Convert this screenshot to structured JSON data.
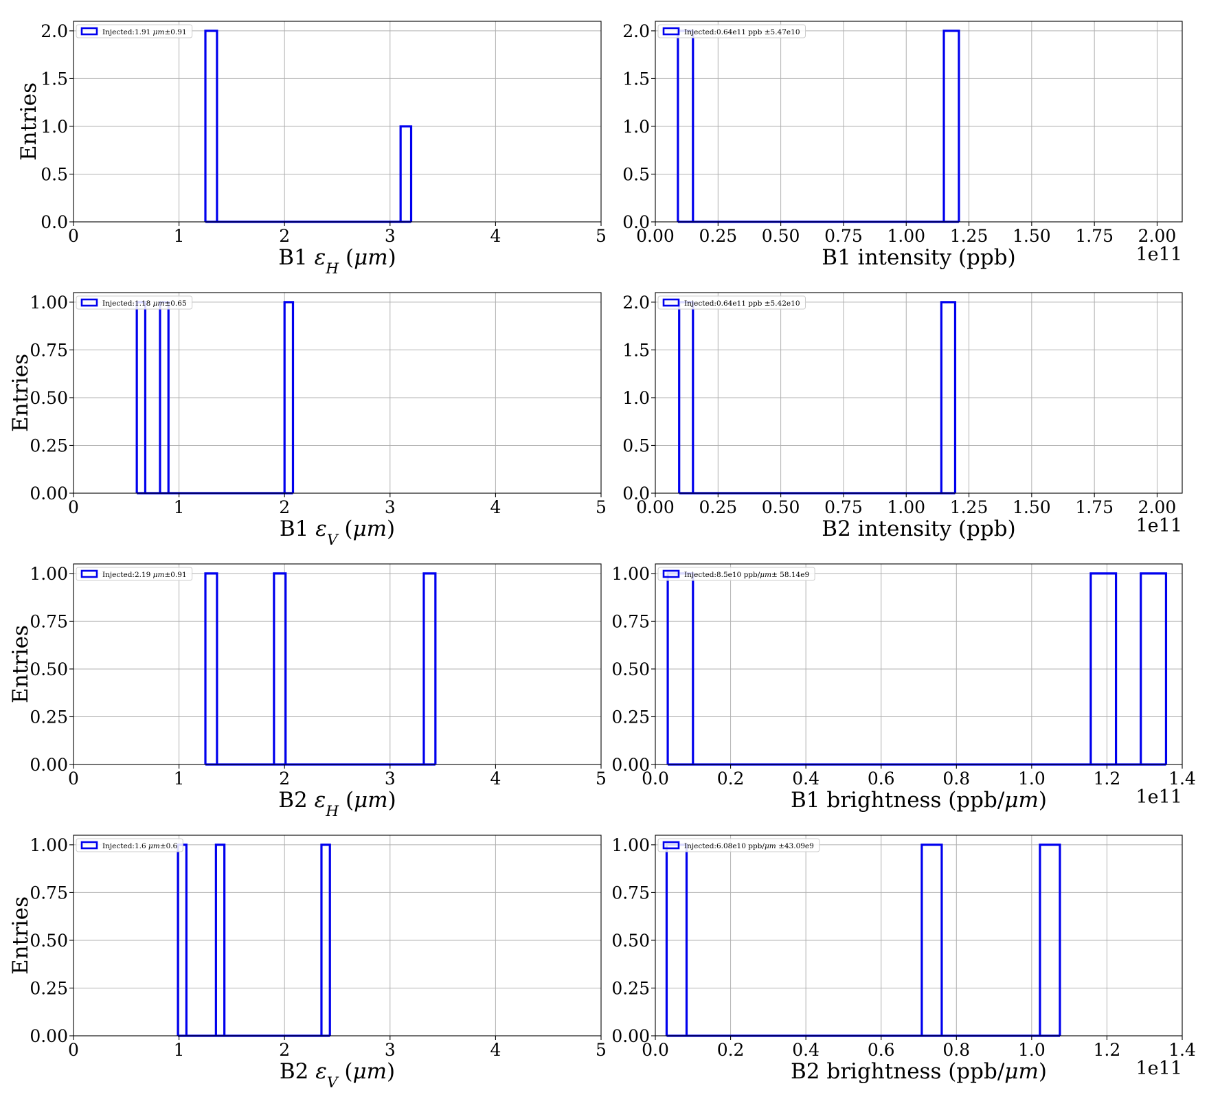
{
  "chart_data": [
    {
      "type": "histogram-step",
      "xlabel": "B1 εH (μm)",
      "ylabel": "Entries",
      "xlim": [
        0,
        5
      ],
      "ylim": [
        0,
        2.1
      ],
      "xticks": [
        0,
        1,
        2,
        3,
        4,
        5
      ],
      "xtick_labels": [
        "0",
        "1",
        "2",
        "3",
        "4",
        "5"
      ],
      "yticks": [
        0,
        0.5,
        1.0,
        1.5,
        2.0
      ],
      "ytick_labels": [
        "0.0",
        "0.5",
        "1.0",
        "1.5",
        "2.0"
      ],
      "offset_text": "",
      "legend": "Injected:1.91 μm±0.91",
      "legend_position": "upper-left",
      "grid": true,
      "color": "#0000ee",
      "x": [
        1.25,
        1.36,
        3.1,
        3.2
      ],
      "y": [
        2,
        0,
        1,
        0
      ]
    },
    {
      "type": "histogram-step",
      "xlabel": "B1 intensity (ppb)",
      "ylabel": "",
      "xlim": [
        0,
        2.1
      ],
      "ylim": [
        0,
        2.1
      ],
      "xticks": [
        0,
        0.25,
        0.5,
        0.75,
        1.0,
        1.25,
        1.5,
        1.75,
        2.0
      ],
      "xtick_labels": [
        "0.00",
        "0.25",
        "0.50",
        "0.75",
        "1.00",
        "1.25",
        "1.50",
        "1.75",
        "2.00"
      ],
      "yticks": [
        0,
        0.5,
        1.0,
        1.5,
        2.0
      ],
      "ytick_labels": [
        "0.0",
        "0.5",
        "1.0",
        "1.5",
        "2.0"
      ],
      "offset_text": "1e11",
      "legend": "Injected:0.64e11 ppb ±5.47e10",
      "legend_position": "upper-left",
      "grid": true,
      "color": "#0000ee",
      "x": [
        0.09,
        0.15,
        1.15,
        1.21
      ],
      "y": [
        2,
        0,
        2,
        0
      ]
    },
    {
      "type": "histogram-step",
      "xlabel": "B1 εV (μm)",
      "ylabel": "Entries",
      "xlim": [
        0,
        5
      ],
      "ylim": [
        0,
        1.05
      ],
      "xticks": [
        0,
        1,
        2,
        3,
        4,
        5
      ],
      "xtick_labels": [
        "0",
        "1",
        "2",
        "3",
        "4",
        "5"
      ],
      "yticks": [
        0,
        0.25,
        0.5,
        0.75,
        1.0
      ],
      "ytick_labels": [
        "0.00",
        "0.25",
        "0.50",
        "0.75",
        "1.00"
      ],
      "offset_text": "",
      "legend": "Injected:1.18 μm±0.65",
      "legend_position": "upper-left",
      "grid": true,
      "color": "#0000ee",
      "x": [
        0.6,
        0.68,
        0.82,
        0.9,
        2.0,
        2.08
      ],
      "y": [
        1,
        0,
        1,
        0,
        1,
        0
      ]
    },
    {
      "type": "histogram-step",
      "xlabel": "B2 intensity (ppb)",
      "ylabel": "",
      "xlim": [
        0,
        2.1
      ],
      "ylim": [
        0,
        2.1
      ],
      "xticks": [
        0,
        0.25,
        0.5,
        0.75,
        1.0,
        1.25,
        1.5,
        1.75,
        2.0
      ],
      "xtick_labels": [
        "0.00",
        "0.25",
        "0.50",
        "0.75",
        "1.00",
        "1.25",
        "1.50",
        "1.75",
        "2.00"
      ],
      "yticks": [
        0,
        0.5,
        1.0,
        1.5,
        2.0
      ],
      "ytick_labels": [
        "0.0",
        "0.5",
        "1.0",
        "1.5",
        "2.0"
      ],
      "offset_text": "1e11",
      "legend": "Injected:0.64e11 ppb ±5.42e10",
      "legend_position": "upper-left",
      "grid": true,
      "color": "#0000ee",
      "x": [
        0.095,
        0.15,
        1.14,
        1.195
      ],
      "y": [
        2,
        0,
        2,
        0
      ]
    },
    {
      "type": "histogram-step",
      "xlabel": "B2 εH (μm)",
      "ylabel": "Entries",
      "xlim": [
        0,
        5
      ],
      "ylim": [
        0,
        1.05
      ],
      "xticks": [
        0,
        1,
        2,
        3,
        4,
        5
      ],
      "xtick_labels": [
        "0",
        "1",
        "2",
        "3",
        "4",
        "5"
      ],
      "yticks": [
        0,
        0.25,
        0.5,
        0.75,
        1.0
      ],
      "ytick_labels": [
        "0.00",
        "0.25",
        "0.50",
        "0.75",
        "1.00"
      ],
      "offset_text": "",
      "legend": "Injected:2.19 μm±0.91",
      "legend_position": "upper-left",
      "grid": true,
      "color": "#0000ee",
      "x": [
        1.25,
        1.36,
        1.9,
        2.01,
        3.32,
        3.43
      ],
      "y": [
        1,
        0,
        1,
        0,
        1,
        0
      ]
    },
    {
      "type": "histogram-step",
      "xlabel": "B1 brightness (ppb/μm)",
      "ylabel": "",
      "xlim": [
        0,
        1.4
      ],
      "ylim": [
        0,
        1.05
      ],
      "xticks": [
        0,
        0.2,
        0.4,
        0.6,
        0.8,
        1.0,
        1.2,
        1.4
      ],
      "xtick_labels": [
        "0.0",
        "0.2",
        "0.4",
        "0.6",
        "0.8",
        "1.0",
        "1.2",
        "1.4"
      ],
      "yticks": [
        0,
        0.25,
        0.5,
        0.75,
        1.0
      ],
      "ytick_labels": [
        "0.00",
        "0.25",
        "0.50",
        "0.75",
        "1.00"
      ],
      "offset_text": "1e11",
      "legend": "Injected:8.5e10 ppb/μm± 58.14e9",
      "legend_position": "upper-left",
      "grid": true,
      "color": "#0000ee",
      "x": [
        0.033,
        0.1,
        1.157,
        1.224,
        1.29,
        1.357
      ],
      "y": [
        1,
        0,
        1,
        0,
        1,
        0
      ]
    },
    {
      "type": "histogram-step",
      "xlabel": "B2 εV (μm)",
      "ylabel": "Entries",
      "xlim": [
        0,
        5
      ],
      "ylim": [
        0,
        1.05
      ],
      "xticks": [
        0,
        1,
        2,
        3,
        4,
        5
      ],
      "xtick_labels": [
        "0",
        "1",
        "2",
        "3",
        "4",
        "5"
      ],
      "yticks": [
        0,
        0.25,
        0.5,
        0.75,
        1.0
      ],
      "ytick_labels": [
        "0.00",
        "0.25",
        "0.50",
        "0.75",
        "1.00"
      ],
      "offset_text": "",
      "legend": "Injected:1.6 μm±0.6",
      "legend_position": "upper-left",
      "grid": true,
      "color": "#0000ee",
      "x": [
        0.99,
        1.07,
        1.35,
        1.43,
        2.35,
        2.43
      ],
      "y": [
        1,
        0,
        1,
        0,
        1,
        0
      ]
    },
    {
      "type": "histogram-step",
      "xlabel": "B2 brightness (ppb/μm)",
      "ylabel": "",
      "xlim": [
        0,
        1.4
      ],
      "ylim": [
        0,
        1.05
      ],
      "xticks": [
        0,
        0.2,
        0.4,
        0.6,
        0.8,
        1.0,
        1.2,
        1.4
      ],
      "xtick_labels": [
        "0.0",
        "0.2",
        "0.4",
        "0.6",
        "0.8",
        "1.0",
        "1.2",
        "1.4"
      ],
      "yticks": [
        0,
        0.25,
        0.5,
        0.75,
        1.0
      ],
      "ytick_labels": [
        "0.00",
        "0.25",
        "0.50",
        "0.75",
        "1.00"
      ],
      "offset_text": "1e11",
      "legend": "Injected:6.08e10 ppb/μm ±43.09e9",
      "legend_position": "upper-left",
      "grid": true,
      "color": "#0000ee",
      "x": [
        0.03,
        0.083,
        0.708,
        0.761,
        1.022,
        1.075
      ],
      "y": [
        1,
        0,
        1,
        0,
        1,
        0
      ]
    }
  ]
}
